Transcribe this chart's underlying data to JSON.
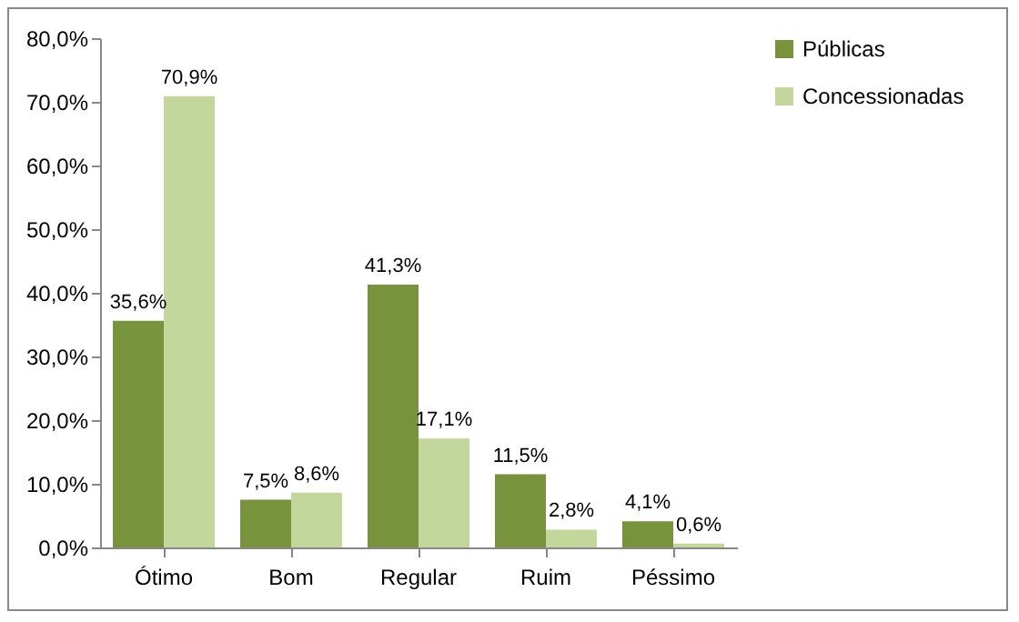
{
  "chart_data": {
    "type": "bar",
    "categories": [
      "Ótimo",
      "Bom",
      "Regular",
      "Ruim",
      "Péssimo"
    ],
    "series": [
      {
        "name": "Públicas",
        "color": "#77933c",
        "values": [
          35.6,
          7.5,
          41.3,
          11.5,
          4.1
        ],
        "value_labels": [
          "35,6%",
          "7,5%",
          "41,3%",
          "11,5%",
          "4,1%"
        ]
      },
      {
        "name": "Concessionadas",
        "color": "#c3d69b",
        "values": [
          70.9,
          8.6,
          17.1,
          2.8,
          0.6
        ],
        "value_labels": [
          "70,9%",
          "8,6%",
          "17,1%",
          "2,8%",
          "0,6%"
        ]
      }
    ],
    "ylim": [
      0,
      80
    ],
    "yticks": [
      {
        "value": 0,
        "label": "0,0%"
      },
      {
        "value": 10,
        "label": "10,0%"
      },
      {
        "value": 20,
        "label": "20,0%"
      },
      {
        "value": 30,
        "label": "30,0%"
      },
      {
        "value": 40,
        "label": "40,0%"
      },
      {
        "value": 50,
        "label": "50,0%"
      },
      {
        "value": 60,
        "label": "60,0%"
      },
      {
        "value": 70,
        "label": "70,0%"
      },
      {
        "value": 80,
        "label": "80,0%"
      }
    ],
    "grid": false,
    "legend": "right"
  }
}
